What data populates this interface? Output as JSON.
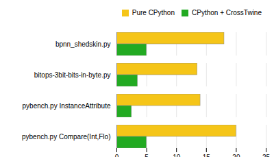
{
  "chart_data": {
    "type": "bar",
    "orientation": "horizontal",
    "categories": [
      "pybench.py Compare(Int,Flo)",
      "pybench.py InstanceAttribute",
      "bitops-3bit-bits-in-byte.py",
      "bpnn_shedskin.py"
    ],
    "series": [
      {
        "name": "Pure CPython",
        "color": "#F5C518",
        "values": [
          20,
          14,
          13.5,
          18
        ]
      },
      {
        "name": "CPython + CrossTwine",
        "color": "#22AA22",
        "values": [
          5,
          2.5,
          3.5,
          5
        ]
      }
    ],
    "xlim": [
      0,
      25
    ],
    "xticks": [
      0,
      5,
      10,
      15,
      20,
      25
    ],
    "grid": true,
    "legend": "right"
  }
}
